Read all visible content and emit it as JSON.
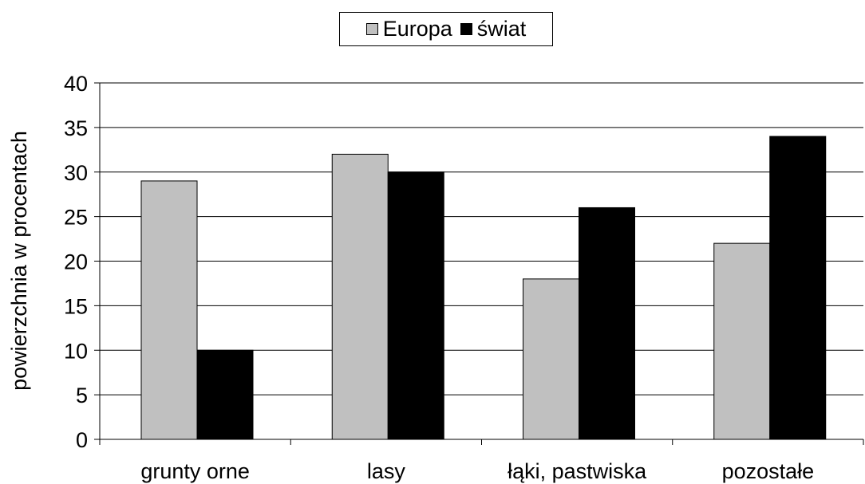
{
  "chart_data": {
    "type": "bar",
    "categories": [
      "grunty orne",
      "lasy",
      "łąki, pastwiska",
      "pozostałe"
    ],
    "series": [
      {
        "name": "Europa",
        "color": "#c0c0c0",
        "values": [
          29,
          32,
          18,
          22
        ]
      },
      {
        "name": "świat",
        "color": "#000000",
        "values": [
          10,
          30,
          26,
          34
        ]
      }
    ],
    "ylabel": "powierzchnia w procentach",
    "ylim": [
      0,
      40
    ],
    "yticks": [
      0,
      5,
      10,
      15,
      20,
      25,
      30,
      35,
      40
    ],
    "grid": true,
    "legend_position": "top-center"
  }
}
